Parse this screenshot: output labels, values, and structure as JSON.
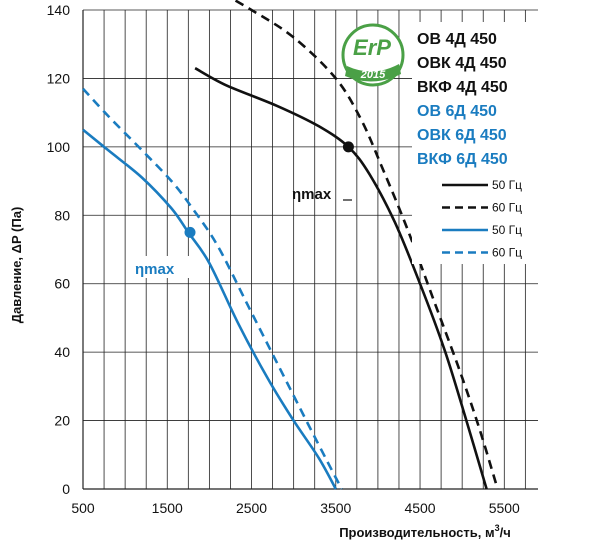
{
  "colors": {
    "black": "#111111",
    "blue": "#1a7cc0",
    "grid": "#222222",
    "badge_green": "#4aa046"
  },
  "badge": {
    "title": "ErP",
    "year": "2015",
    "icon": "erp-2015-badge"
  },
  "chart_data": {
    "type": "line",
    "ylabel": "Давление, ΔP (Па)",
    "xlabel": "Производительность,  м³/ч",
    "xlim": [
      500,
      5900
    ],
    "ylim": [
      0,
      140
    ],
    "x_ticks": [
      500,
      1500,
      2500,
      3500,
      4500,
      5500
    ],
    "y_ticks": [
      0,
      20,
      40,
      60,
      80,
      100,
      120,
      140
    ],
    "grid": true,
    "models": [
      {
        "label": "ОВ 4Д 450",
        "color": "#111111"
      },
      {
        "label": "ОВК 4Д 450",
        "color": "#111111"
      },
      {
        "label": "ВКФ 4Д 450",
        "color": "#111111"
      },
      {
        "label": "ОВ 6Д 450",
        "color": "#1a7cc0"
      },
      {
        "label": "ОВК 6Д 450",
        "color": "#1a7cc0"
      },
      {
        "label": "ВКФ 6Д 450",
        "color": "#1a7cc0"
      }
    ],
    "legend_position": "top-right",
    "series": [
      {
        "name": "50 Гц",
        "color": "#111111",
        "dash": false,
        "points": [
          [
            1830,
            123
          ],
          [
            2200,
            118
          ],
          [
            2800,
            112
          ],
          [
            3300,
            106
          ],
          [
            3650,
            100
          ],
          [
            3900,
            92
          ],
          [
            4200,
            78
          ],
          [
            4500,
            60
          ],
          [
            4800,
            40
          ],
          [
            5050,
            20
          ],
          [
            5290,
            0
          ]
        ]
      },
      {
        "name": "60 Гц",
        "color": "#111111",
        "dash": true,
        "points": [
          [
            2000,
            147
          ],
          [
            2500,
            140
          ],
          [
            3000,
            132
          ],
          [
            3500,
            120
          ],
          [
            3800,
            108
          ],
          [
            4050,
            94
          ],
          [
            4350,
            76
          ],
          [
            4650,
            56
          ],
          [
            4950,
            36
          ],
          [
            5200,
            18
          ],
          [
            5420,
            0
          ]
        ]
      },
      {
        "name": "50 Гц",
        "color": "#1a7cc0",
        "dash": false,
        "points": [
          [
            500,
            105
          ],
          [
            800,
            99
          ],
          [
            1200,
            91
          ],
          [
            1550,
            82
          ],
          [
            1750,
            75
          ],
          [
            2000,
            66
          ],
          [
            2350,
            48
          ],
          [
            2700,
            32
          ],
          [
            3000,
            20
          ],
          [
            3300,
            9
          ],
          [
            3500,
            0
          ]
        ]
      },
      {
        "name": "60 Гц",
        "color": "#1a7cc0",
        "dash": true,
        "points": [
          [
            500,
            117
          ],
          [
            800,
            109
          ],
          [
            1200,
            99
          ],
          [
            1550,
            90
          ],
          [
            1800,
            82
          ],
          [
            2100,
            71
          ],
          [
            2450,
            54
          ],
          [
            2800,
            37
          ],
          [
            3150,
            20
          ],
          [
            3400,
            8
          ],
          [
            3570,
            0
          ]
        ]
      }
    ],
    "annotations": [
      {
        "text": "ηmax",
        "x": 3650,
        "y": 100,
        "color": "#111111"
      },
      {
        "text": "ηmax",
        "x": 1770,
        "y": 75,
        "color": "#1a7cc0"
      }
    ]
  }
}
